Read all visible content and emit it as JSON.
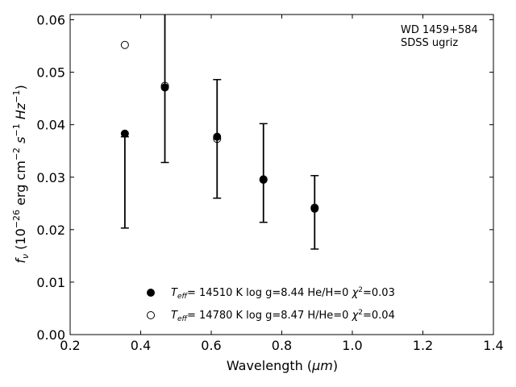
{
  "chart_data": {
    "type": "scatter",
    "annotation": [
      "WD 1459+584",
      "SDSS ugriz"
    ],
    "xlabel_prefix": "Wavelength (",
    "xlabel_unit": "μm",
    "xlabel_suffix": ")",
    "ylabel_main": "(10",
    "ylabel_exp": "−26",
    "ylabel_tail": " erg cm",
    "xlim": [
      0.2,
      1.4
    ],
    "ylim": [
      0.0,
      0.061
    ],
    "xticks": [
      0.2,
      0.4,
      0.6,
      0.8,
      1.0,
      1.2,
      1.4
    ],
    "xtick_labels": [
      "0.2",
      "0.4",
      "0.6",
      "0.8",
      "1.0",
      "1.2",
      "1.4"
    ],
    "yticks": [
      0.0,
      0.01,
      0.02,
      0.03,
      0.04,
      0.05,
      0.06
    ],
    "ytick_labels": [
      "0.00",
      "0.01",
      "0.02",
      "0.03",
      "0.04",
      "0.05",
      "0.06"
    ],
    "observed": {
      "x": [
        0.3551,
        0.4686,
        0.6166,
        0.748,
        0.8932
      ],
      "y": [
        0.029,
        0.047,
        0.0373,
        0.0308,
        0.0233
      ],
      "yerr": [
        0.0087,
        0.0142,
        0.0113,
        0.0094,
        0.007
      ]
    },
    "series": [
      {
        "marker": "filled",
        "label_teff": "= 14510 K  log g=8.44  He/H=0  ",
        "label_chi": "=0.03",
        "x": [
          0.3551,
          0.4686,
          0.6166,
          0.748,
          0.8932
        ],
        "y": [
          0.0383,
          0.0471,
          0.0377,
          0.0296,
          0.024
        ]
      },
      {
        "marker": "open",
        "label_teff": "= 14780 K  log g=8.47  H/He=0  ",
        "label_chi": "=0.04",
        "x": [
          0.3551,
          0.4686,
          0.6166,
          0.748,
          0.8932
        ],
        "y": [
          0.0552,
          0.0474,
          0.0373,
          0.0295,
          0.0242
        ]
      }
    ]
  }
}
